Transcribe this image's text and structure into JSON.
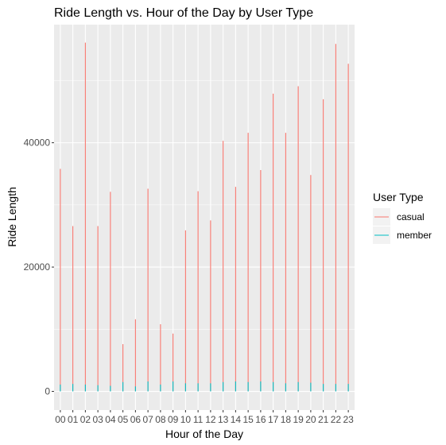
{
  "chart_data": {
    "type": "line",
    "title": "Ride Length vs. Hour of the Day by User Type",
    "xlabel": "Hour of the Day",
    "ylabel": "Ride Length",
    "categories": [
      "00",
      "01",
      "02",
      "03",
      "04",
      "05",
      "06",
      "07",
      "08",
      "09",
      "10",
      "11",
      "12",
      "13",
      "14",
      "15",
      "16",
      "17",
      "18",
      "19",
      "20",
      "21",
      "22",
      "23"
    ],
    "ylim": [
      -3000,
      59000
    ],
    "yticks": [
      0,
      20000,
      40000
    ],
    "ytick_labels": [
      "0",
      "20000",
      "40000"
    ],
    "grid": true,
    "legend": {
      "title": "User Type",
      "placement": "right",
      "entries": [
        "casual",
        "member"
      ]
    },
    "series": [
      {
        "name": "casual",
        "color": "#F8766D",
        "values": [
          35800,
          26600,
          56100,
          26600,
          32100,
          7600,
          11600,
          32600,
          10800,
          9300,
          25900,
          32200,
          27500,
          40300,
          32900,
          41600,
          35600,
          47900,
          41600,
          49100,
          34800,
          47000,
          55900,
          52700
        ]
      },
      {
        "name": "member",
        "color": "#00BFC4",
        "values": [
          1100,
          1200,
          1100,
          1000,
          900,
          1500,
          800,
          1600,
          1100,
          1600,
          1300,
          1300,
          1300,
          1500,
          1600,
          1500,
          1600,
          1500,
          1300,
          1500,
          1400,
          1200,
          1200,
          1200
        ]
      }
    ]
  }
}
